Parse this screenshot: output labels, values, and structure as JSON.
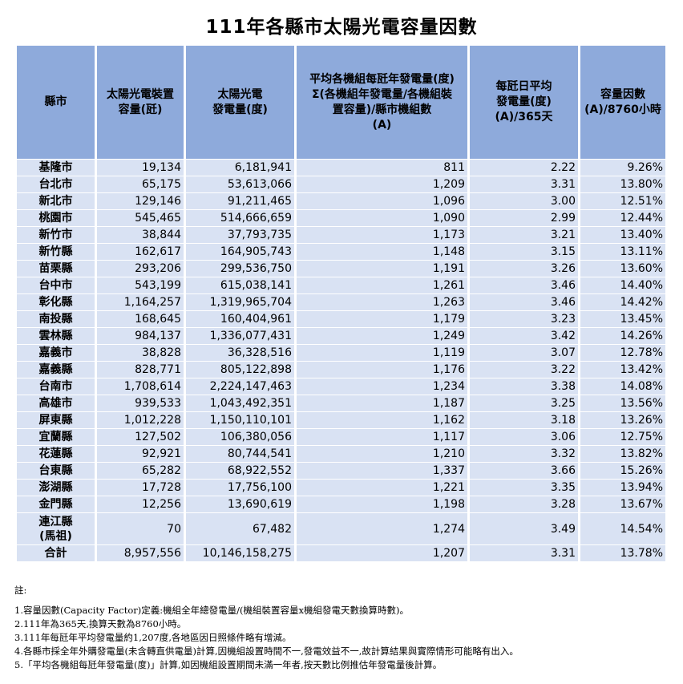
{
  "title": "111年各縣市太陽光電容量因數",
  "headers": {
    "county": [
      "縣市"
    ],
    "capacity": [
      "太陽光電裝置",
      "容量(瓩)"
    ],
    "generation": [
      "太陽光電",
      "發電量(度)"
    ],
    "avg_per_unit": [
      "平均各機組每瓩年發電量(度)",
      "Σ(各機組年發電量/各機組裝",
      "置容量)/縣市機組數",
      "(A)"
    ],
    "daily_avg": [
      "每瓩日平均",
      "發電量(度)",
      "(A)/365天"
    ],
    "capacity_factor": [
      "容量因數",
      "(A)/8760小時"
    ]
  },
  "rows": [
    {
      "county": "基隆市",
      "capacity": "19,134",
      "generation": "6,181,941",
      "avg": "811",
      "daily": "2.22",
      "cf": "9.26%"
    },
    {
      "county": "台北市",
      "capacity": "65,175",
      "generation": "53,613,066",
      "avg": "1,209",
      "daily": "3.31",
      "cf": "13.80%"
    },
    {
      "county": "新北市",
      "capacity": "129,146",
      "generation": "91,211,465",
      "avg": "1,096",
      "daily": "3.00",
      "cf": "12.51%"
    },
    {
      "county": "桃園市",
      "capacity": "545,465",
      "generation": "514,666,659",
      "avg": "1,090",
      "daily": "2.99",
      "cf": "12.44%"
    },
    {
      "county": "新竹市",
      "capacity": "38,844",
      "generation": "37,793,735",
      "avg": "1,173",
      "daily": "3.21",
      "cf": "13.40%"
    },
    {
      "county": "新竹縣",
      "capacity": "162,617",
      "generation": "164,905,743",
      "avg": "1,148",
      "daily": "3.15",
      "cf": "13.11%"
    },
    {
      "county": "苗栗縣",
      "capacity": "293,206",
      "generation": "299,536,750",
      "avg": "1,191",
      "daily": "3.26",
      "cf": "13.60%"
    },
    {
      "county": "台中市",
      "capacity": "543,199",
      "generation": "615,038,141",
      "avg": "1,261",
      "daily": "3.46",
      "cf": "14.40%"
    },
    {
      "county": "彰化縣",
      "capacity": "1,164,257",
      "generation": "1,319,965,704",
      "avg": "1,263",
      "daily": "3.46",
      "cf": "14.42%"
    },
    {
      "county": "南投縣",
      "capacity": "168,645",
      "generation": "160,404,961",
      "avg": "1,179",
      "daily": "3.23",
      "cf": "13.45%"
    },
    {
      "county": "雲林縣",
      "capacity": "984,137",
      "generation": "1,336,077,431",
      "avg": "1,249",
      "daily": "3.42",
      "cf": "14.26%"
    },
    {
      "county": "嘉義市",
      "capacity": "38,828",
      "generation": "36,328,516",
      "avg": "1,119",
      "daily": "3.07",
      "cf": "12.78%"
    },
    {
      "county": "嘉義縣",
      "capacity": "828,771",
      "generation": "805,122,898",
      "avg": "1,176",
      "daily": "3.22",
      "cf": "13.42%"
    },
    {
      "county": "台南市",
      "capacity": "1,708,614",
      "generation": "2,224,147,463",
      "avg": "1,234",
      "daily": "3.38",
      "cf": "14.08%"
    },
    {
      "county": "高雄市",
      "capacity": "939,533",
      "generation": "1,043,492,351",
      "avg": "1,187",
      "daily": "3.25",
      "cf": "13.56%"
    },
    {
      "county": "屏東縣",
      "capacity": "1,012,228",
      "generation": "1,150,110,101",
      "avg": "1,162",
      "daily": "3.18",
      "cf": "13.26%"
    },
    {
      "county": "宜蘭縣",
      "capacity": "127,502",
      "generation": "106,380,056",
      "avg": "1,117",
      "daily": "3.06",
      "cf": "12.75%"
    },
    {
      "county": "花蓮縣",
      "capacity": "92,921",
      "generation": "80,744,541",
      "avg": "1,210",
      "daily": "3.32",
      "cf": "13.82%"
    },
    {
      "county": "台東縣",
      "capacity": "65,282",
      "generation": "68,922,552",
      "avg": "1,337",
      "daily": "3.66",
      "cf": "15.26%"
    },
    {
      "county": "澎湖縣",
      "capacity": "17,728",
      "generation": "17,756,100",
      "avg": "1,221",
      "daily": "3.35",
      "cf": "13.94%"
    },
    {
      "county": "金門縣",
      "capacity": "12,256",
      "generation": "13,690,619",
      "avg": "1,198",
      "daily": "3.28",
      "cf": "13.67%"
    },
    {
      "county": "連江縣\n(馬祖)",
      "capacity": "70",
      "generation": "67,482",
      "avg": "1,274",
      "daily": "3.49",
      "cf": "14.54%",
      "tall": true
    },
    {
      "county": "合計",
      "capacity": "8,957,556",
      "generation": "10,146,158,275",
      "avg": "1,207",
      "daily": "3.31",
      "cf": "13.78%"
    }
  ],
  "notes": [
    "註:",
    "1.容量因數(Capacity Factor)定義:機組全年總發電量/(機組裝置容量x機組發電天數換算時數)。",
    "2.111年為365天,換算天數為8760小時。",
    "3.111年每瓩年平均發電量約1,207度,各地區因日照條件略有增減。",
    "4.各縣市採全年外購發電量(未含轉直供電量)計算,因機組設置時間不一,發電效益不一,故計算結果與實際情形可能略有出入。",
    "5.「平均各機組每瓩年發電量(度)」計算,如因機組設置期間未滿一年者,按天數比例推估年發電量後計算。"
  ]
}
